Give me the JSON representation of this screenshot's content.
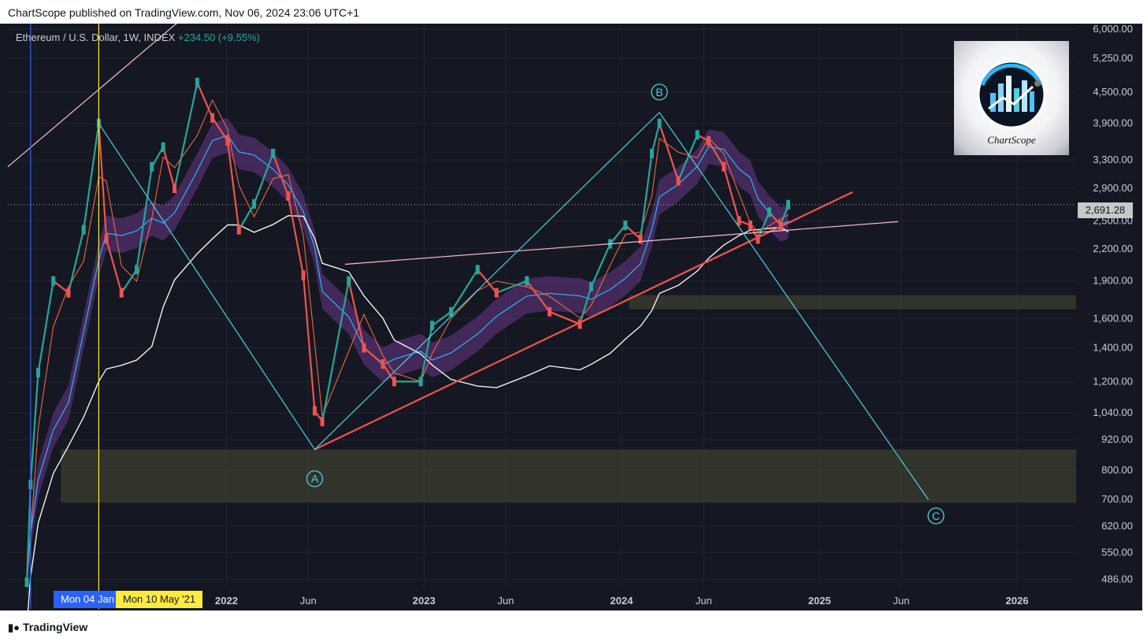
{
  "header": {
    "publish_text": "ChartScope published on TradingView.com, Nov 06, 2024 23:06 UTC+1"
  },
  "footer": {
    "brand": "TradingView"
  },
  "logo": {
    "caption": "ChartScope"
  },
  "symbol": {
    "name": "Ethereum / U.S. Dollar, 1W, INDEX",
    "change": "+234.50 (+9.55%)"
  },
  "chart_data": {
    "type": "candlestick",
    "title": "",
    "xlabel": "",
    "ylabel": "",
    "yscale": "log",
    "ylim": [
      470,
      6150
    ],
    "xlim": [
      "2020-11-23",
      "2026-04-20"
    ],
    "grid": true,
    "y_ticks": [
      6000,
      5250,
      4500,
      3900,
      3300,
      2900,
      2500,
      2200,
      1900,
      1600,
      1400,
      1200,
      1040,
      920,
      800,
      700,
      620,
      550,
      486
    ],
    "y_tick_labels": [
      "6,000.00",
      "5,250.00",
      "4,500.00",
      "3,900.00",
      "3,300.00",
      "2,900.00",
      "2,500.00",
      "2,200.00",
      "1,900.00",
      "1,600.00",
      "1,400.00",
      "1,200.00",
      "1,040.00",
      "920.00",
      "800.00",
      "700.00",
      "620.00",
      "550.00",
      "486.00"
    ],
    "x_ticks": [
      {
        "date": "2022-01-01",
        "label": "2022"
      },
      {
        "date": "2022-06-01",
        "label": "Jun"
      },
      {
        "date": "2023-01-01",
        "label": "2023"
      },
      {
        "date": "2023-06-01",
        "label": "Jun"
      },
      {
        "date": "2024-01-01",
        "label": "2024"
      },
      {
        "date": "2024-06-01",
        "label": "Jun"
      },
      {
        "date": "2025-01-01",
        "label": "2025"
      },
      {
        "date": "2025-06-01",
        "label": "Jun"
      },
      {
        "date": "2026-01-01",
        "label": "2026"
      }
    ],
    "last_price": 2691.28,
    "last_price_label": "2,691.28",
    "price_path": [
      [
        "2020-12-28",
        480
      ],
      [
        "2021-01-04",
        750
      ],
      [
        "2021-01-18",
        1250
      ],
      [
        "2021-02-15",
        1900
      ],
      [
        "2021-03-15",
        1800
      ],
      [
        "2021-04-12",
        2400
      ],
      [
        "2021-05-10",
        3900
      ],
      [
        "2021-05-24",
        2300
      ],
      [
        "2021-06-21",
        1800
      ],
      [
        "2021-07-19",
        2000
      ],
      [
        "2021-08-16",
        3200
      ],
      [
        "2021-09-06",
        3500
      ],
      [
        "2021-09-27",
        2900
      ],
      [
        "2021-11-08",
        4700
      ],
      [
        "2021-12-06",
        4000
      ],
      [
        "2022-01-03",
        3600
      ],
      [
        "2022-01-24",
        2400
      ],
      [
        "2022-02-21",
        2700
      ],
      [
        "2022-03-28",
        3400
      ],
      [
        "2022-04-25",
        2800
      ],
      [
        "2022-05-23",
        1950
      ],
      [
        "2022-06-13",
        1050
      ],
      [
        "2022-06-27",
        1000
      ],
      [
        "2022-08-15",
        1900
      ],
      [
        "2022-09-12",
        1400
      ],
      [
        "2022-10-17",
        1300
      ],
      [
        "2022-11-07",
        1200
      ],
      [
        "2022-12-26",
        1200
      ],
      [
        "2023-01-16",
        1550
      ],
      [
        "2023-02-20",
        1650
      ],
      [
        "2023-04-10",
        2000
      ],
      [
        "2023-05-15",
        1800
      ],
      [
        "2023-07-10",
        1900
      ],
      [
        "2023-08-21",
        1650
      ],
      [
        "2023-10-16",
        1560
      ],
      [
        "2023-11-06",
        1850
      ],
      [
        "2023-12-11",
        2250
      ],
      [
        "2024-01-08",
        2450
      ],
      [
        "2024-02-05",
        2300
      ],
      [
        "2024-02-26",
        3400
      ],
      [
        "2024-03-11",
        3900
      ],
      [
        "2024-04-15",
        3000
      ],
      [
        "2024-05-20",
        3700
      ],
      [
        "2024-06-10",
        3600
      ],
      [
        "2024-07-08",
        3200
      ],
      [
        "2024-08-05",
        2500
      ],
      [
        "2024-08-26",
        2450
      ],
      [
        "2024-09-09",
        2300
      ],
      [
        "2024-09-30",
        2600
      ],
      [
        "2024-10-21",
        2450
      ],
      [
        "2024-11-04",
        2691.28
      ]
    ],
    "trend_lines": [
      {
        "name": "upper-channel",
        "color": "#f8bbd0",
        "points": [
          [
            "2020-11-23",
            3200
          ],
          [
            "2021-10-04",
            6200
          ]
        ]
      },
      {
        "name": "rising-support",
        "color": "#ef5350",
        "points": [
          [
            "2022-06-13",
            880
          ],
          [
            "2025-03-03",
            2850
          ]
        ]
      },
      {
        "name": "pink-resistance",
        "color": "#f8bbd0",
        "points": [
          [
            "2022-08-08",
            2050
          ],
          [
            "2025-05-26",
            2490
          ]
        ]
      },
      {
        "name": "abc-path",
        "color": "#4dd0e1",
        "points": [
          [
            "2021-05-10",
            3900
          ],
          [
            "2022-06-13",
            880
          ],
          [
            "2024-03-11",
            4100
          ],
          [
            "2025-07-21",
            700
          ]
        ]
      }
    ],
    "labels": [
      {
        "text": "A",
        "date": "2022-06-13",
        "price": 770
      },
      {
        "text": "B",
        "date": "2024-03-11",
        "price": 4500
      },
      {
        "text": "C",
        "date": "2025-08-04",
        "price": 650
      }
    ],
    "zones": [
      {
        "from": 690,
        "to": 880,
        "start": "2021-03-01"
      },
      {
        "from": 1670,
        "to": 1780,
        "start": "2024-01-15"
      }
    ],
    "vertical_markers": [
      {
        "date": "2021-01-04",
        "label": "Mon 04 Jan",
        "color": "#2962ff"
      },
      {
        "date": "2021-05-10",
        "label": "Mon 10 May '21",
        "color": "#ffeb3b"
      }
    ]
  }
}
